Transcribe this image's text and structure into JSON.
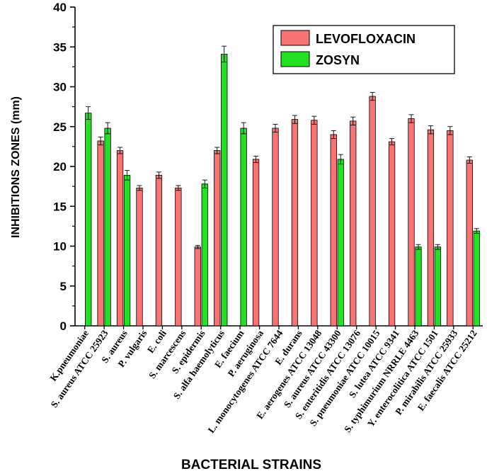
{
  "chart_data": {
    "type": "bar",
    "title": "",
    "xlabel": "BACTERIAL STRAINS",
    "ylabel": "INHIBITIONS ZONES (mm)",
    "ylim": [
      0,
      40
    ],
    "yticks": [
      0,
      5,
      10,
      15,
      20,
      25,
      30,
      35,
      40
    ],
    "legend_position": "top-right",
    "categories": [
      "K.pneumoniae",
      "S. aureus ATCC 25923",
      "S. aureus",
      "P. vulgaris",
      "E. coli",
      "S. marcescens",
      "S. epidermis",
      "S. alfa haemolyticus",
      "E. faecium",
      "P. aeruginosa",
      "L. monocytogenes ATCC 7644",
      "E. durans",
      "E. aerogenes ATCC 13048",
      "S. aureus ATCC 43300",
      "S. enteritidis ATCC 13076",
      "S. pneumoniae ATCC 10015",
      "S. lutea ATCC 9341",
      "S. typhimurium NRRLE 4463",
      "Y. enterocolitica ATCC 1501",
      "P. mirabilis ATCC 25933",
      "E. faecalis ATCC 25212"
    ],
    "series": [
      {
        "name": "LEVOFLOXACIN",
        "color": "#f87373",
        "values": [
          null,
          23.2,
          22.0,
          17.3,
          18.9,
          17.3,
          9.9,
          22.0,
          null,
          20.9,
          24.8,
          25.9,
          25.8,
          24.0,
          25.7,
          28.8,
          23.1,
          26.0,
          24.6,
          24.5,
          20.8
        ],
        "errors": [
          0,
          0.5,
          0.4,
          0.3,
          0.4,
          0.3,
          0.2,
          0.4,
          0,
          0.4,
          0.5,
          0.5,
          0.5,
          0.5,
          0.5,
          0.5,
          0.4,
          0.5,
          0.5,
          0.5,
          0.4
        ]
      },
      {
        "name": "ZOSYN",
        "color": "#22e022",
        "values": [
          26.7,
          24.8,
          18.9,
          null,
          null,
          null,
          17.8,
          34.1,
          24.8,
          null,
          null,
          null,
          null,
          20.9,
          null,
          null,
          null,
          9.9,
          9.9,
          null,
          11.9
        ],
        "errors": [
          0.8,
          0.7,
          0.6,
          0,
          0,
          0,
          0.5,
          1.0,
          0.7,
          0,
          0,
          0,
          0,
          0.6,
          0,
          0,
          0,
          0.3,
          0.3,
          0,
          0.3
        ]
      }
    ]
  }
}
